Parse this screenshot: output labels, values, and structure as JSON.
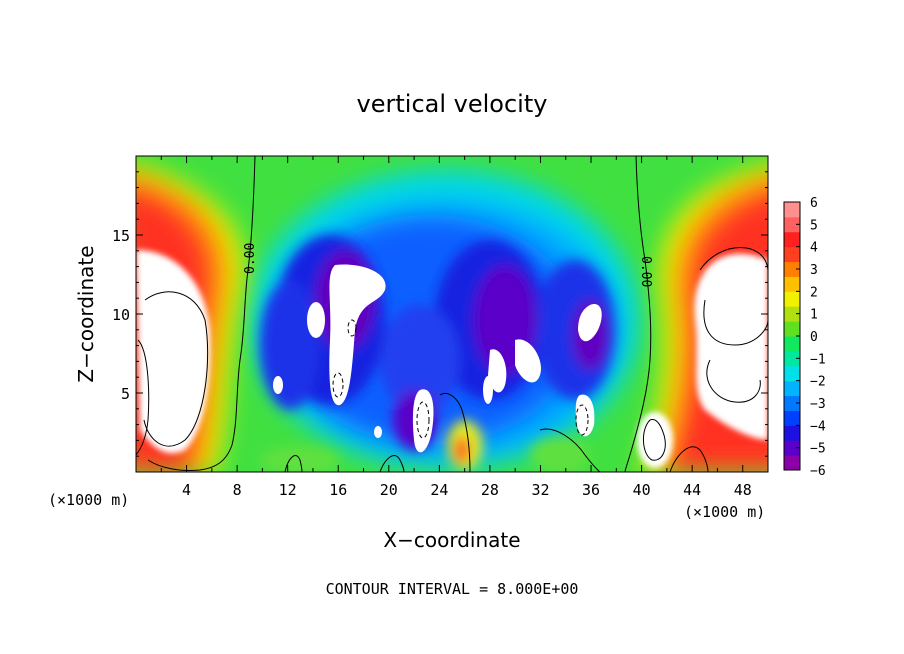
{
  "chart_data": {
    "type": "heatmap",
    "title": "vertical velocity",
    "xlabel": "X−coordinate",
    "ylabel": "Z−coordinate",
    "x_unit_left": "(×1000 m)",
    "x_unit_right": "(×1000 m)",
    "xlim": [
      0,
      50
    ],
    "ylim": [
      0,
      20
    ],
    "x_ticks": [
      4,
      8,
      12,
      16,
      20,
      24,
      28,
      32,
      36,
      40,
      44,
      48
    ],
    "x_tick_labels": [
      "4",
      "8",
      "12",
      "16",
      "20",
      "24",
      "28",
      "32",
      "36",
      "40",
      "44",
      "48"
    ],
    "y_ticks": [
      5,
      10,
      15
    ],
    "y_tick_labels": [
      "5",
      "10",
      "15"
    ],
    "colorbar": {
      "min": -6,
      "max": 6,
      "tick_labels": [
        "6",
        "5",
        "4",
        "3",
        "2",
        "1",
        "0",
        "−1",
        "−2",
        "−3",
        "−4",
        "−5",
        "−6"
      ],
      "colors": [
        "#8b00a8",
        "#5a00c8",
        "#1e10e0",
        "#0040ff",
        "#0078ff",
        "#00b4ff",
        "#00e0e8",
        "#00e8a0",
        "#10e860",
        "#60e020",
        "#b0e010",
        "#f0f000",
        "#ffc000",
        "#ff8000",
        "#ff4020",
        "#ff2020",
        "#ff6060",
        "#ff9090"
      ]
    },
    "contour_labels": [
      {
        "text": "0.00",
        "x": 9.0,
        "y": 13.5
      },
      {
        "text": "0.00",
        "x": 40.6,
        "y": 12.5
      }
    ],
    "features": [
      {
        "name": "left-updraft-column",
        "sign": "positive",
        "x_range": [
          0,
          7
        ],
        "z_range": [
          0.5,
          19
        ]
      },
      {
        "name": "right-updraft-column",
        "sign": "positive",
        "x_range": [
          40,
          50
        ],
        "z_range": [
          0.5,
          19
        ]
      },
      {
        "name": "central-downdraft-region",
        "sign": "negative",
        "x_range": [
          10,
          38
        ],
        "z_range": [
          0.5,
          19
        ]
      }
    ],
    "note": "CONTOUR INTERVAL = 8.000E+00"
  }
}
